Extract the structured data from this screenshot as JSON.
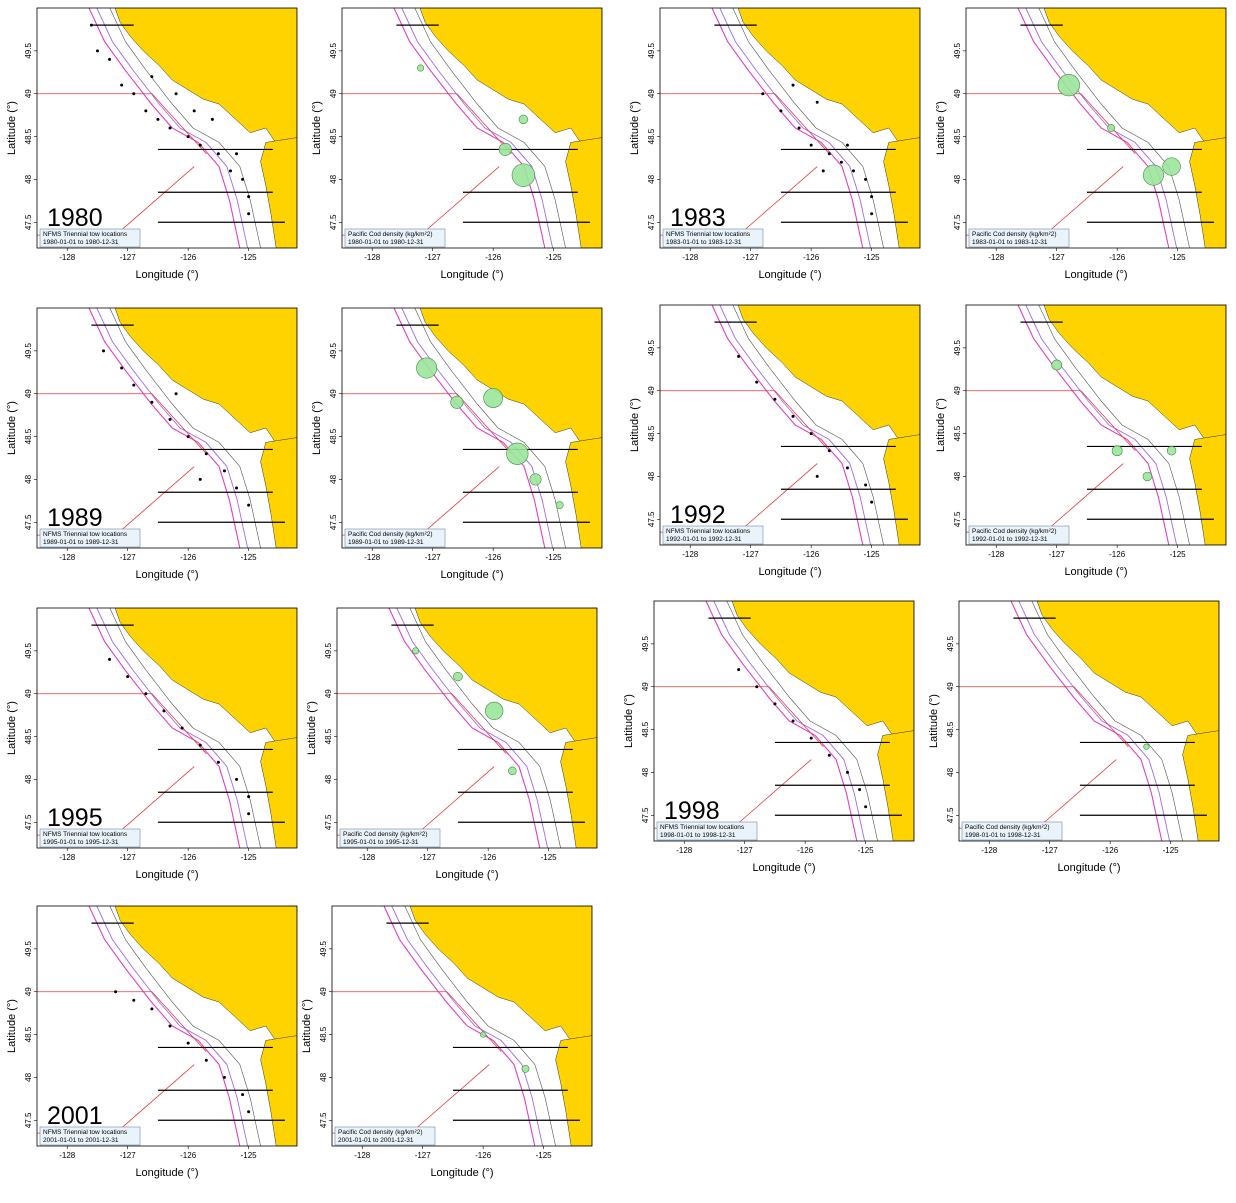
{
  "axis": {
    "xlabel": "Longitude (°)",
    "ylabel": "Latitude (°)",
    "xticks": [
      "-128",
      "-127",
      "-126",
      "-125"
    ],
    "yticks": [
      "49.5",
      "49",
      "48.5",
      "48",
      "47.5"
    ],
    "xlim": [
      -128.5,
      -124.2
    ],
    "ylim": [
      47.2,
      50.0
    ]
  },
  "colors": {
    "land": "#FFD300",
    "tow": "#000000",
    "cod_fill": "#9BE59B",
    "cod_edge": "#3D8C3D",
    "boundary": "#E43B3B",
    "isobath_shelf": "#A06CF0",
    "isobath_deep": "#E040C0",
    "isobath_shallow": "#555555",
    "legend_bg": "#EAF3FA",
    "legend_border": "#6E8BA6"
  },
  "chart_data": [
    {
      "type": "scatter",
      "year": "1980",
      "map": "tows",
      "legend_title": "NFMS Triennial tow locations",
      "legend_range": "1980-01-01 to 1980-12-31",
      "points": [
        {
          "lon": -127.6,
          "lat": 49.8
        },
        {
          "lon": -127.5,
          "lat": 49.5
        },
        {
          "lon": -127.3,
          "lat": 49.4
        },
        {
          "lon": -127.1,
          "lat": 49.1
        },
        {
          "lon": -126.9,
          "lat": 49.0
        },
        {
          "lon": -126.7,
          "lat": 48.8
        },
        {
          "lon": -126.5,
          "lat": 48.7
        },
        {
          "lon": -126.3,
          "lat": 48.6
        },
        {
          "lon": -126.0,
          "lat": 48.5
        },
        {
          "lon": -125.8,
          "lat": 48.4
        },
        {
          "lon": -125.5,
          "lat": 48.3
        },
        {
          "lon": -125.2,
          "lat": 48.3
        },
        {
          "lon": -125.3,
          "lat": 48.1
        },
        {
          "lon": -125.1,
          "lat": 48.0
        },
        {
          "lon": -125.0,
          "lat": 47.8
        },
        {
          "lon": -125.0,
          "lat": 47.6
        },
        {
          "lon": -126.6,
          "lat": 49.2
        },
        {
          "lon": -126.2,
          "lat": 49.0
        },
        {
          "lon": -125.9,
          "lat": 48.8
        },
        {
          "lon": -125.6,
          "lat": 48.7
        }
      ]
    },
    {
      "type": "scatter",
      "year": "1980",
      "map": "cod_density",
      "legend_title": "Pacific Cod density (kg/km²2)",
      "legend_range": "1980-01-01 to 1980-12-31",
      "points": [
        {
          "lon": -125.5,
          "lat": 48.05,
          "density": 10
        },
        {
          "lon": -125.8,
          "lat": 48.35,
          "density": 3
        },
        {
          "lon": -125.5,
          "lat": 48.7,
          "density": 1.5
        },
        {
          "lon": -127.2,
          "lat": 49.3,
          "density": 0.8
        }
      ]
    },
    {
      "type": "scatter",
      "year": "1983",
      "map": "tows",
      "legend_title": "NFMS Triennial tow locations",
      "legend_range": "1983-01-01 to 1983-12-31",
      "points": [
        {
          "lon": -126.8,
          "lat": 49.0
        },
        {
          "lon": -126.5,
          "lat": 48.8
        },
        {
          "lon": -126.2,
          "lat": 48.6
        },
        {
          "lon": -126.0,
          "lat": 48.4
        },
        {
          "lon": -125.7,
          "lat": 48.3
        },
        {
          "lon": -125.5,
          "lat": 48.2
        },
        {
          "lon": -125.3,
          "lat": 48.1
        },
        {
          "lon": -125.1,
          "lat": 48.0
        },
        {
          "lon": -125.0,
          "lat": 47.8
        },
        {
          "lon": -125.0,
          "lat": 47.6
        },
        {
          "lon": -125.8,
          "lat": 48.1
        },
        {
          "lon": -125.4,
          "lat": 48.4
        },
        {
          "lon": -126.3,
          "lat": 49.1
        },
        {
          "lon": -125.9,
          "lat": 48.9
        }
      ]
    },
    {
      "type": "scatter",
      "year": "1983",
      "map": "cod_density",
      "legend_title": "Pacific Cod density (kg/km²2)",
      "legend_range": "1983-01-01 to 1983-12-31",
      "points": [
        {
          "lon": -126.8,
          "lat": 49.1,
          "density": 9
        },
        {
          "lon": -125.4,
          "lat": 48.05,
          "density": 8
        },
        {
          "lon": -125.1,
          "lat": 48.15,
          "density": 6
        },
        {
          "lon": -126.1,
          "lat": 48.6,
          "density": 1
        }
      ]
    },
    {
      "type": "scatter",
      "year": "1989",
      "map": "tows",
      "legend_title": "NFMS Triennial tow locations",
      "legend_range": "1989-01-01 to 1989-12-31",
      "points": [
        {
          "lon": -127.4,
          "lat": 49.5
        },
        {
          "lon": -127.1,
          "lat": 49.3
        },
        {
          "lon": -126.9,
          "lat": 49.1
        },
        {
          "lon": -126.6,
          "lat": 48.9
        },
        {
          "lon": -126.3,
          "lat": 48.7
        },
        {
          "lon": -126.0,
          "lat": 48.5
        },
        {
          "lon": -125.7,
          "lat": 48.3
        },
        {
          "lon": -125.4,
          "lat": 48.1
        },
        {
          "lon": -125.2,
          "lat": 47.9
        },
        {
          "lon": -125.0,
          "lat": 47.7
        },
        {
          "lon": -125.8,
          "lat": 48.0
        },
        {
          "lon": -126.2,
          "lat": 49.0
        }
      ]
    },
    {
      "type": "scatter",
      "year": "1989",
      "map": "cod_density",
      "legend_title": "Pacific Cod density (kg/km²2)",
      "legend_range": "1989-01-01 to 1989-12-31",
      "points": [
        {
          "lon": -127.1,
          "lat": 49.3,
          "density": 8
        },
        {
          "lon": -126.0,
          "lat": 48.95,
          "density": 7
        },
        {
          "lon": -125.6,
          "lat": 48.3,
          "density": 9
        },
        {
          "lon": -126.6,
          "lat": 48.9,
          "density": 3
        },
        {
          "lon": -125.3,
          "lat": 48.0,
          "density": 2.5
        },
        {
          "lon": -124.9,
          "lat": 47.7,
          "density": 1
        }
      ]
    },
    {
      "type": "scatter",
      "year": "1992",
      "map": "tows",
      "legend_title": "NFMS Triennial tow locations",
      "legend_range": "1992-01-01 to 1992-12-31",
      "points": [
        {
          "lon": -127.2,
          "lat": 49.4
        },
        {
          "lon": -126.9,
          "lat": 49.1
        },
        {
          "lon": -126.6,
          "lat": 48.9
        },
        {
          "lon": -126.3,
          "lat": 48.7
        },
        {
          "lon": -126.0,
          "lat": 48.5
        },
        {
          "lon": -125.7,
          "lat": 48.3
        },
        {
          "lon": -125.4,
          "lat": 48.1
        },
        {
          "lon": -125.1,
          "lat": 47.9
        },
        {
          "lon": -125.0,
          "lat": 47.7
        },
        {
          "lon": -125.9,
          "lat": 48.0
        }
      ]
    },
    {
      "type": "scatter",
      "year": "1992",
      "map": "cod_density",
      "legend_title": "Pacific Cod density (kg/km²2)",
      "legend_range": "1992-01-01 to 1992-12-31",
      "points": [
        {
          "lon": -127.0,
          "lat": 49.3,
          "density": 2
        },
        {
          "lon": -126.0,
          "lat": 48.3,
          "density": 2
        },
        {
          "lon": -125.1,
          "lat": 48.3,
          "density": 1.5
        },
        {
          "lon": -125.5,
          "lat": 48.0,
          "density": 1.5
        }
      ]
    },
    {
      "type": "scatter",
      "year": "1995",
      "map": "tows",
      "legend_title": "NFMS Triennial tow locations",
      "legend_range": "1995-01-01 to 1995-12-31",
      "points": [
        {
          "lon": -127.3,
          "lat": 49.4
        },
        {
          "lon": -127.0,
          "lat": 49.2
        },
        {
          "lon": -126.7,
          "lat": 49.0
        },
        {
          "lon": -126.4,
          "lat": 48.8
        },
        {
          "lon": -126.1,
          "lat": 48.6
        },
        {
          "lon": -125.8,
          "lat": 48.4
        },
        {
          "lon": -125.5,
          "lat": 48.2
        },
        {
          "lon": -125.2,
          "lat": 48.0
        },
        {
          "lon": -125.0,
          "lat": 47.8
        },
        {
          "lon": -125.0,
          "lat": 47.6
        }
      ]
    },
    {
      "type": "scatter",
      "year": "1995",
      "map": "cod_density",
      "legend_title": "Pacific Cod density (kg/km²2)",
      "legend_range": "1995-01-01 to 1995-12-31",
      "points": [
        {
          "lon": -125.9,
          "lat": 48.8,
          "density": 6
        },
        {
          "lon": -126.5,
          "lat": 49.2,
          "density": 1.5
        },
        {
          "lon": -125.6,
          "lat": 48.1,
          "density": 1.2
        },
        {
          "lon": -127.2,
          "lat": 49.5,
          "density": 0.8
        }
      ]
    },
    {
      "type": "scatter",
      "year": "1998",
      "map": "tows",
      "legend_title": "NFMS Triennial tow locations",
      "legend_range": "1998-01-01 to 1998-12-31",
      "points": [
        {
          "lon": -127.1,
          "lat": 49.2
        },
        {
          "lon": -126.8,
          "lat": 49.0
        },
        {
          "lon": -126.5,
          "lat": 48.8
        },
        {
          "lon": -126.2,
          "lat": 48.6
        },
        {
          "lon": -125.9,
          "lat": 48.4
        },
        {
          "lon": -125.6,
          "lat": 48.2
        },
        {
          "lon": -125.3,
          "lat": 48.0
        },
        {
          "lon": -125.1,
          "lat": 47.8
        },
        {
          "lon": -125.0,
          "lat": 47.6
        }
      ]
    },
    {
      "type": "scatter",
      "year": "1998",
      "map": "cod_density",
      "legend_title": "Pacific Cod density (kg/km²2)",
      "legend_range": "1998-01-01 to 1998-12-31",
      "points": [
        {
          "lon": -125.4,
          "lat": 48.3,
          "density": 0.6
        }
      ]
    },
    {
      "type": "scatter",
      "year": "2001",
      "map": "tows",
      "legend_title": "NFMS Triennial tow locations",
      "legend_range": "2001-01-01 to 2001-12-31",
      "points": [
        {
          "lon": -127.2,
          "lat": 49.0
        },
        {
          "lon": -126.9,
          "lat": 48.9
        },
        {
          "lon": -126.6,
          "lat": 48.8
        },
        {
          "lon": -126.3,
          "lat": 48.6
        },
        {
          "lon": -126.0,
          "lat": 48.4
        },
        {
          "lon": -125.7,
          "lat": 48.2
        },
        {
          "lon": -125.4,
          "lat": 48.0
        },
        {
          "lon": -125.1,
          "lat": 47.8
        },
        {
          "lon": -125.0,
          "lat": 47.6
        }
      ]
    },
    {
      "type": "scatter",
      "year": "2001",
      "map": "cod_density",
      "legend_title": "Pacific Cod density (kg/km²2)",
      "legend_range": "2001-01-01 to 2001-12-31",
      "points": [
        {
          "lon": -125.3,
          "lat": 48.1,
          "density": 1
        },
        {
          "lon": -126.0,
          "lat": 48.5,
          "density": 0.6
        }
      ]
    }
  ]
}
